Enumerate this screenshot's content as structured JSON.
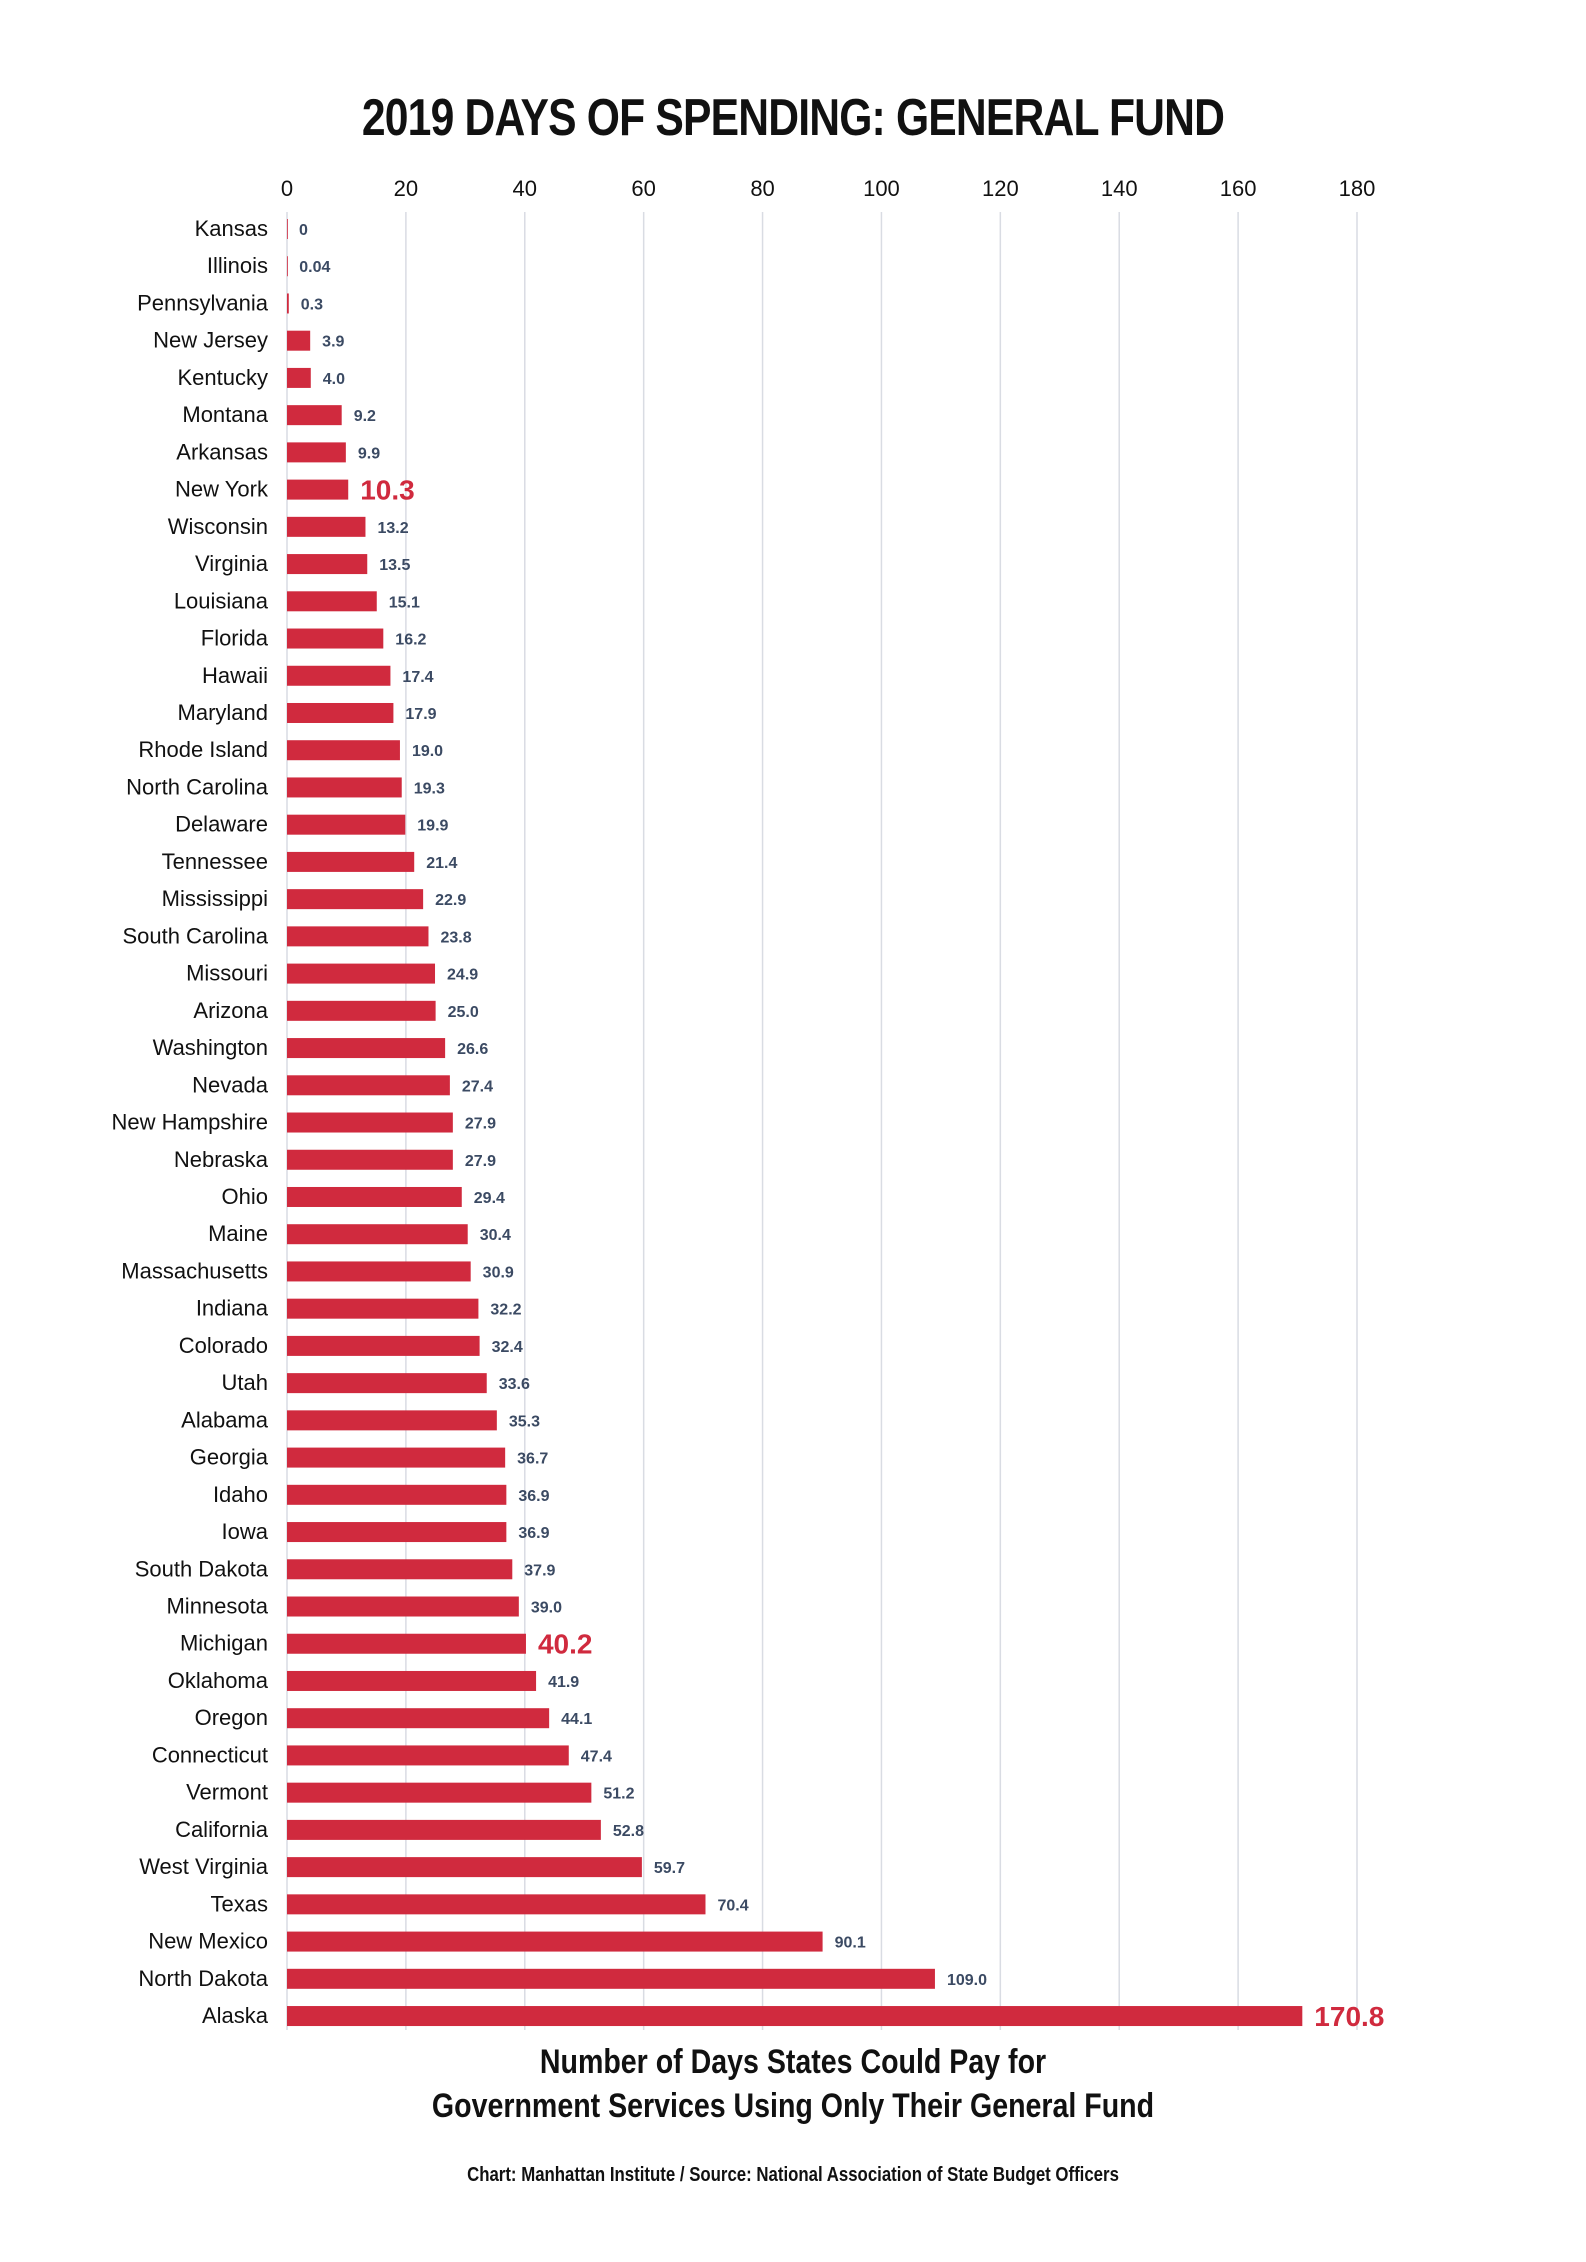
{
  "chart_data": {
    "type": "bar",
    "orientation": "horizontal",
    "title": "2019 DAYS OF SPENDING: GENERAL FUND",
    "xlabel": [
      "Number of Days States Could Pay for",
      "Government Services Using Only Their General Fund"
    ],
    "ylabel": "",
    "xlim": [
      0,
      180
    ],
    "xticks": [
      0,
      20,
      40,
      60,
      80,
      100,
      120,
      140,
      160,
      180
    ],
    "axis_position": "top",
    "grid": true,
    "legend": "none",
    "categories": [
      "Kansas",
      "Illinois",
      "Pennsylvania",
      "New Jersey",
      "Kentucky",
      "Montana",
      "Arkansas",
      "New York",
      "Wisconsin",
      "Virginia",
      "Louisiana",
      "Florida",
      "Hawaii",
      "Maryland",
      "Rhode Island",
      "North Carolina",
      "Delaware",
      "Tennessee",
      "Mississippi",
      "South Carolina",
      "Missouri",
      "Arizona",
      "Washington",
      "Nevada",
      "New Hampshire",
      "Nebraska",
      "Ohio",
      "Maine",
      "Massachusetts",
      "Indiana",
      "Colorado",
      "Utah",
      "Alabama",
      "Georgia",
      "Idaho",
      "Iowa",
      "South Dakota",
      "Minnesota",
      "Michigan",
      "Oklahoma",
      "Oregon",
      "Connecticut",
      "Vermont",
      "California",
      "West Virginia",
      "Texas",
      "New Mexico",
      "North Dakota",
      "Alaska"
    ],
    "values": [
      0,
      0.04,
      0.3,
      3.9,
      4.0,
      9.2,
      9.9,
      10.3,
      13.2,
      13.5,
      15.1,
      16.2,
      17.4,
      17.9,
      19.0,
      19.3,
      19.9,
      21.4,
      22.9,
      23.8,
      24.9,
      25.0,
      26.6,
      27.4,
      27.9,
      27.9,
      29.4,
      30.4,
      30.9,
      32.2,
      32.4,
      33.6,
      35.3,
      36.7,
      36.9,
      36.9,
      37.9,
      39.0,
      40.2,
      41.9,
      44.1,
      47.4,
      51.2,
      52.8,
      59.7,
      70.4,
      90.1,
      109.0,
      170.8
    ],
    "value_labels": [
      "0",
      "0.04",
      "0.3",
      "3.9",
      "4.0",
      "9.2",
      "9.9",
      "10.3",
      "13.2",
      "13.5",
      "15.1",
      "16.2",
      "17.4",
      "17.9",
      "19.0",
      "19.3",
      "19.9",
      "21.4",
      "22.9",
      "23.8",
      "24.9",
      "25.0",
      "26.6",
      "27.4",
      "27.9",
      "27.9",
      "29.4",
      "30.4",
      "30.9",
      "32.2",
      "32.4",
      "33.6",
      "35.3",
      "36.7",
      "36.9",
      "36.9",
      "37.9",
      "39.0",
      "40.2",
      "41.9",
      "44.1",
      "47.4",
      "51.2",
      "52.8",
      "59.7",
      "70.4",
      "90.1",
      "109.0",
      "170.8"
    ],
    "highlighted": [
      "New York",
      "Michigan",
      "Alaska"
    ],
    "colors": {
      "bar": "#d02a3e",
      "label": "#3b4a63",
      "highlight_label": "#d02a3e",
      "grid": "#d9dce3",
      "text": "#111111"
    }
  },
  "footer": "Chart: Manhattan Institute  /  Source: National Association of State Budget Officers"
}
